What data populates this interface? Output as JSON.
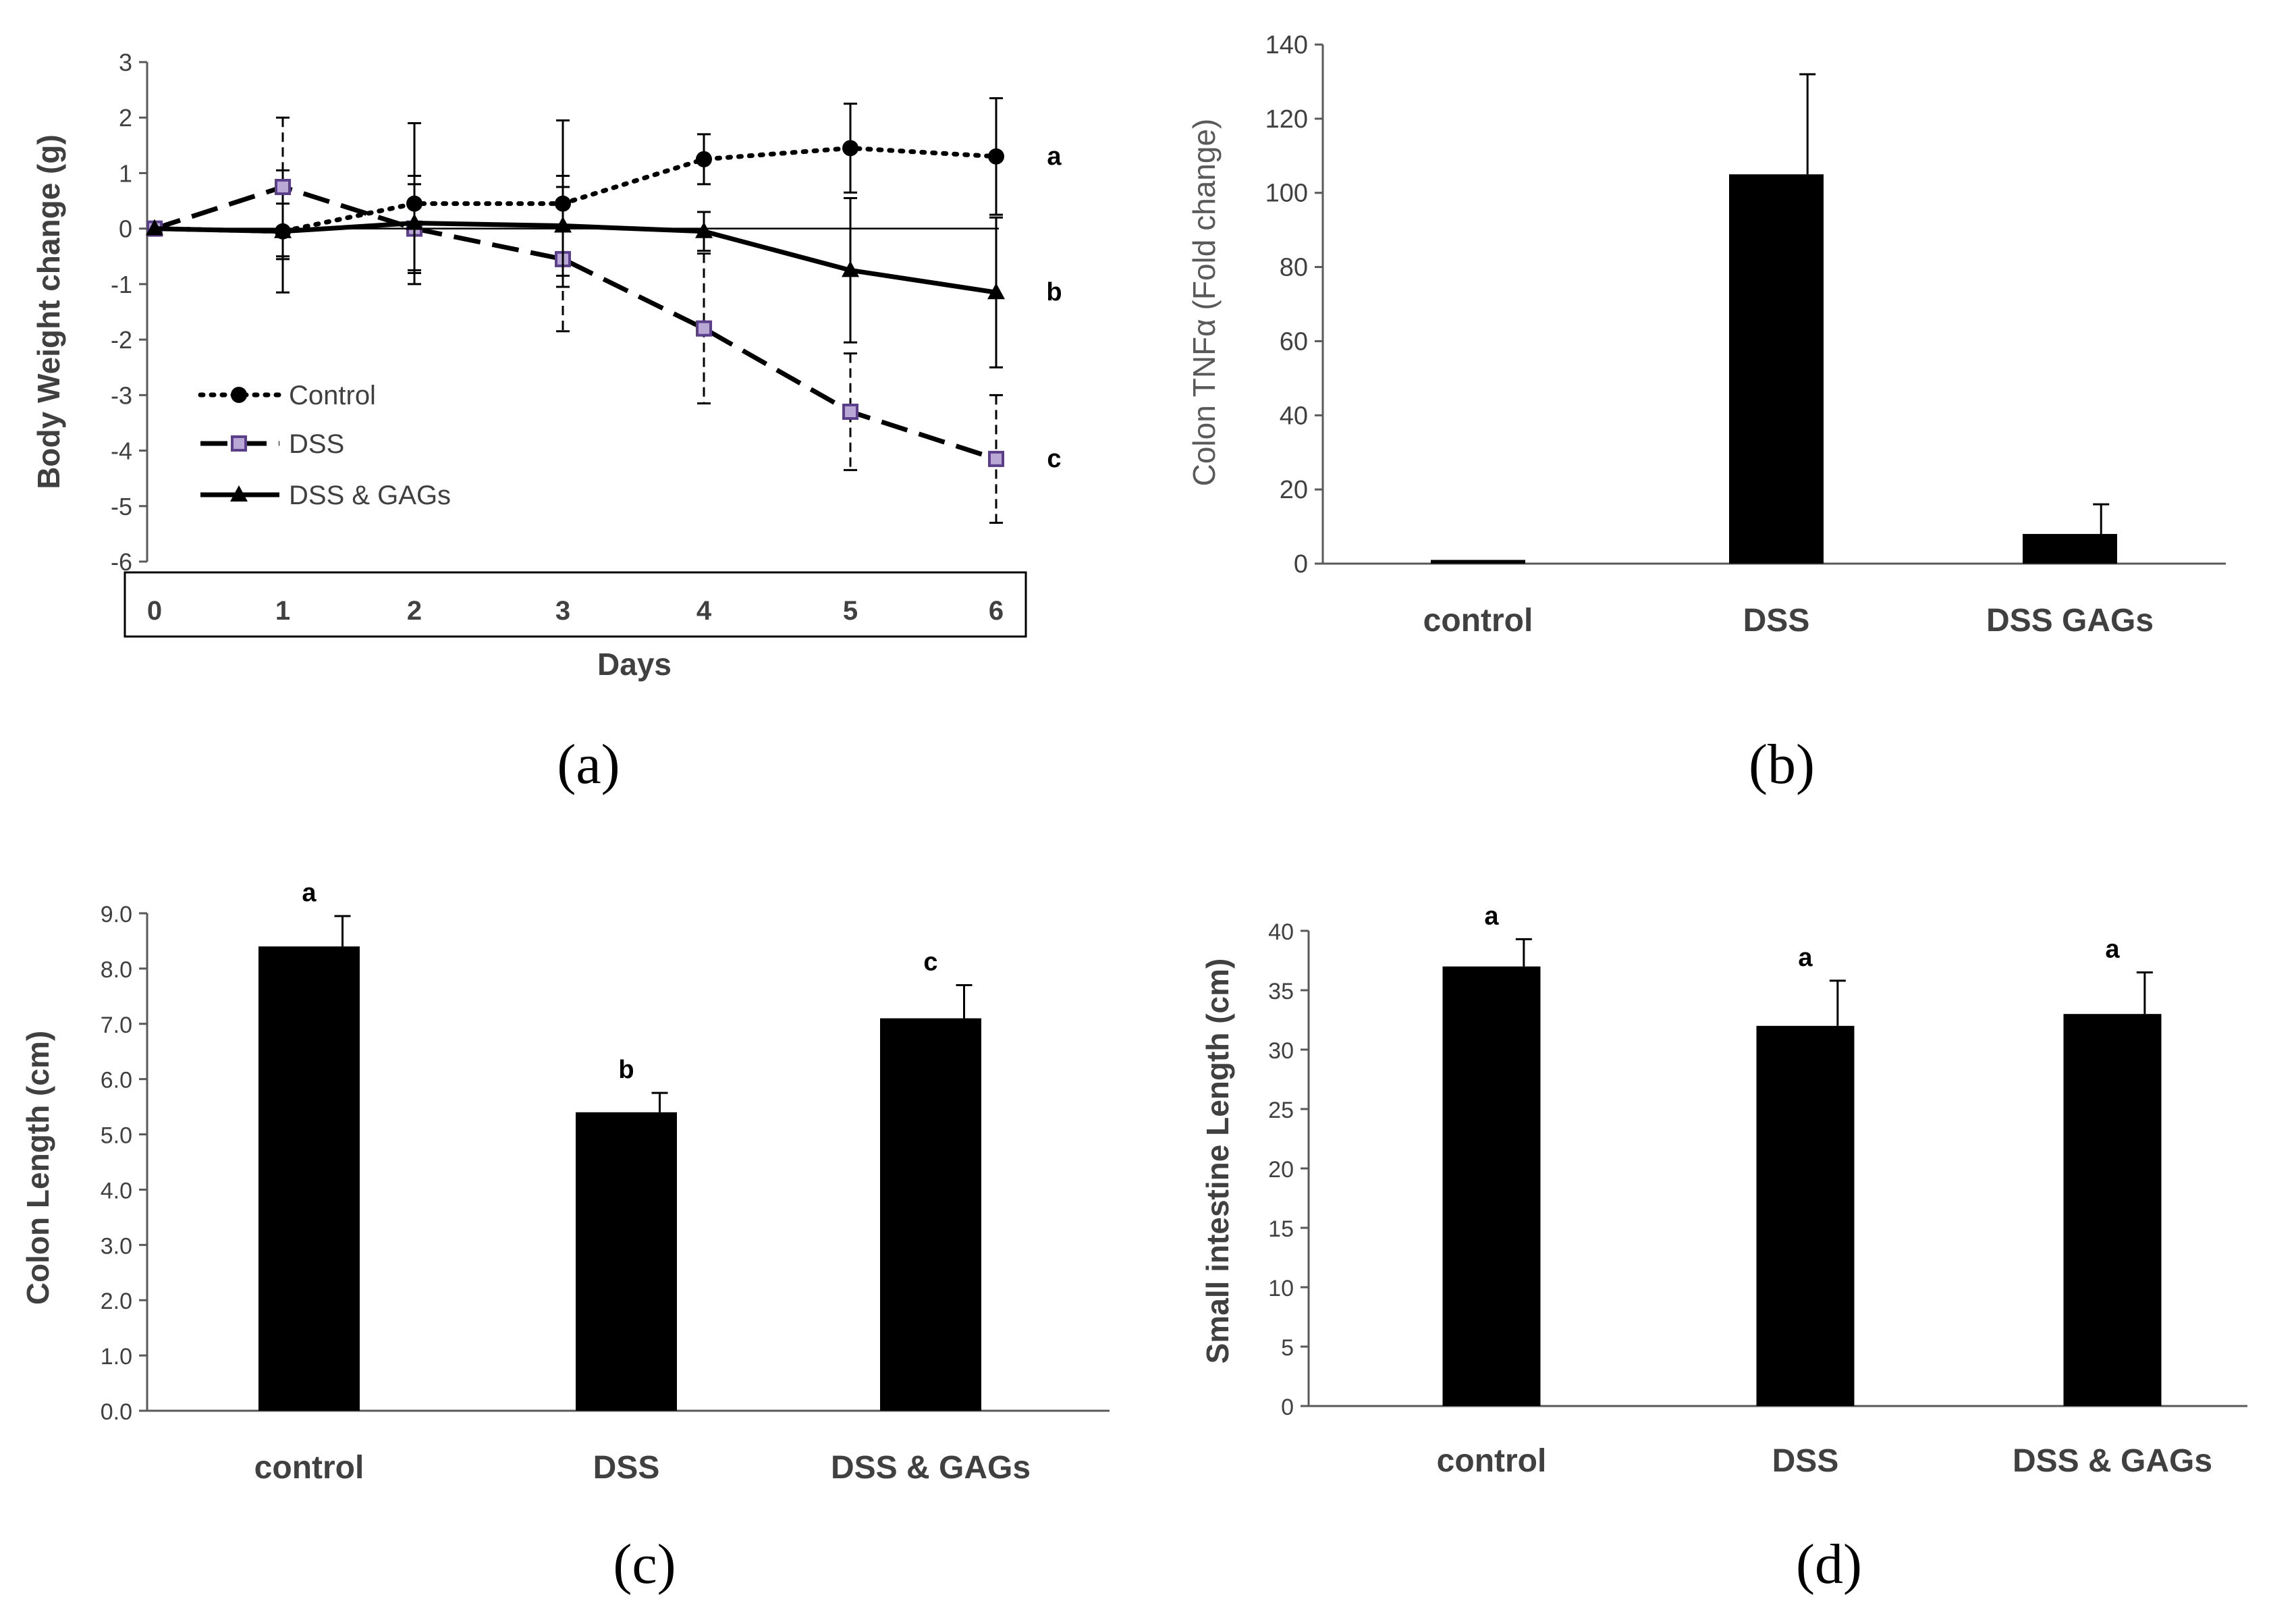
{
  "chart_data": [
    {
      "id": "a",
      "type": "line",
      "panel_label": "(a)",
      "xlabel": "Days",
      "ylabel": "Body Weight change (g)",
      "x": [
        0,
        1,
        2,
        3,
        4,
        5,
        6
      ],
      "ylim": [
        -6,
        3
      ],
      "yticks": [
        3,
        2,
        1,
        0,
        -1,
        -2,
        -3,
        -4,
        -5,
        -6
      ],
      "series": [
        {
          "name": "Control",
          "values": [
            0,
            -0.05,
            0.45,
            0.45,
            1.25,
            1.45,
            1.3
          ],
          "errors": [
            0,
            1.1,
            1.45,
            1.5,
            0.45,
            0.8,
            1.05
          ],
          "style": "dotted",
          "marker": "circle",
          "sig": "a"
        },
        {
          "name": "DSS",
          "values": [
            0,
            0.75,
            0.0,
            -0.55,
            -1.8,
            -3.3,
            -4.15
          ],
          "errors": [
            0,
            1.25,
            0.8,
            1.3,
            1.35,
            1.05,
            1.15
          ],
          "style": "dashed",
          "marker": "square",
          "marker_color": "#5b3f8a",
          "sig": "c"
        },
        {
          "name": "DSS & GAGs",
          "values": [
            0,
            -0.05,
            0.1,
            0.05,
            -0.05,
            -0.75,
            -1.15
          ],
          "errors": [
            0,
            0.5,
            0.85,
            0.9,
            0.35,
            1.3,
            1.35
          ],
          "style": "solid",
          "marker": "triangle",
          "sig": "b"
        }
      ]
    },
    {
      "id": "b",
      "type": "bar",
      "panel_label": "(b)",
      "xlabel": "",
      "ylabel": "Colon TNFα (Fold change)",
      "categories": [
        "control",
        "DSS",
        "DSS GAGs"
      ],
      "values": [
        1,
        105,
        8
      ],
      "errors": [
        0,
        27,
        8
      ],
      "ylim": [
        0,
        140
      ],
      "yticks": [
        0,
        20,
        40,
        60,
        80,
        100,
        120,
        140
      ]
    },
    {
      "id": "c",
      "type": "bar",
      "panel_label": "(c)",
      "xlabel": "",
      "ylabel": "Colon Length (cm)",
      "categories": [
        "control",
        "DSS",
        "DSS & GAGs"
      ],
      "values": [
        8.4,
        5.4,
        7.1
      ],
      "errors": [
        0.55,
        0.35,
        0.6
      ],
      "sig": [
        "a",
        "b",
        "c"
      ],
      "ylim": [
        0,
        9
      ],
      "yticks": [
        "0.0",
        "1.0",
        "2.0",
        "3.0",
        "4.0",
        "5.0",
        "6.0",
        "7.0",
        "8.0",
        "9.0"
      ]
    },
    {
      "id": "d",
      "type": "bar",
      "panel_label": "(d)",
      "xlabel": "",
      "ylabel": "Small intestine Length (cm)",
      "categories": [
        "control",
        "DSS",
        "DSS & GAGs"
      ],
      "values": [
        37,
        32,
        33
      ],
      "errors": [
        2.3,
        3.8,
        3.5
      ],
      "sig": [
        "a",
        "a",
        "a"
      ],
      "ylim": [
        0,
        40
      ],
      "yticks": [
        0,
        5,
        10,
        15,
        20,
        25,
        30,
        35,
        40
      ]
    }
  ]
}
